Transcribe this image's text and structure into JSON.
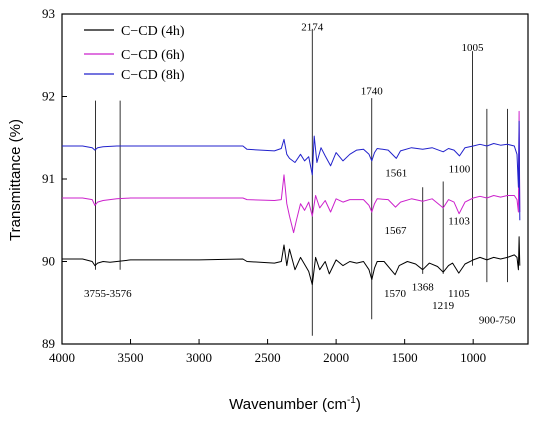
{
  "chart_data": {
    "type": "line",
    "xlabel_main": "Wavenumber (cm",
    "xlabel_sup": "-1",
    "xlabel_end": ")",
    "ylabel": "Transmittance (%)",
    "xlim": [
      4000,
      600
    ],
    "ylim": [
      89,
      93
    ],
    "x_reversed": true,
    "xticks": [
      4000,
      3500,
      3000,
      2500,
      2000,
      1500,
      1000
    ],
    "yticks": [
      89,
      90,
      91,
      92,
      93
    ],
    "legend_position": "top-left",
    "series": [
      {
        "name": "C−CD (4h)",
        "color": "#000000",
        "points": [
          [
            4000,
            90.03
          ],
          [
            3850,
            90.03
          ],
          [
            3780,
            90.0
          ],
          [
            3760,
            89.95
          ],
          [
            3740,
            89.98
          ],
          [
            3700,
            90.0
          ],
          [
            3650,
            89.99
          ],
          [
            3600,
            90.0
          ],
          [
            3500,
            90.02
          ],
          [
            3000,
            90.02
          ],
          [
            2680,
            90.03
          ],
          [
            2650,
            90.0
          ],
          [
            2450,
            89.98
          ],
          [
            2400,
            90.0
          ],
          [
            2380,
            90.2
          ],
          [
            2360,
            89.95
          ],
          [
            2340,
            90.15
          ],
          [
            2300,
            89.9
          ],
          [
            2260,
            90.05
          ],
          [
            2200,
            89.88
          ],
          [
            2174,
            89.72
          ],
          [
            2150,
            90.05
          ],
          [
            2120,
            89.9
          ],
          [
            2080,
            90.0
          ],
          [
            2050,
            89.85
          ],
          [
            2000,
            90.02
          ],
          [
            1950,
            89.95
          ],
          [
            1900,
            90.0
          ],
          [
            1850,
            89.98
          ],
          [
            1800,
            90.0
          ],
          [
            1760,
            89.9
          ],
          [
            1740,
            89.78
          ],
          [
            1720,
            89.92
          ],
          [
            1700,
            90.0
          ],
          [
            1650,
            90.0
          ],
          [
            1600,
            89.9
          ],
          [
            1570,
            89.84
          ],
          [
            1540,
            89.95
          ],
          [
            1480,
            90.0
          ],
          [
            1420,
            89.97
          ],
          [
            1368,
            89.9
          ],
          [
            1320,
            89.98
          ],
          [
            1260,
            89.94
          ],
          [
            1219,
            89.87
          ],
          [
            1180,
            89.95
          ],
          [
            1150,
            89.98
          ],
          [
            1105,
            89.86
          ],
          [
            1060,
            89.97
          ],
          [
            1000,
            90.02
          ],
          [
            950,
            90.05
          ],
          [
            900,
            90.02
          ],
          [
            850,
            90.05
          ],
          [
            800,
            90.03
          ],
          [
            750,
            90.05
          ],
          [
            700,
            90.08
          ],
          [
            680,
            90.05
          ],
          [
            670,
            89.9
          ],
          [
            665,
            90.3
          ],
          [
            660,
            89.95
          ]
        ]
      },
      {
        "name": "C−CD (6h)",
        "color": "#cc22cc",
        "points": [
          [
            4000,
            90.77
          ],
          [
            3850,
            90.77
          ],
          [
            3780,
            90.75
          ],
          [
            3760,
            90.68
          ],
          [
            3740,
            90.72
          ],
          [
            3700,
            90.74
          ],
          [
            3600,
            90.76
          ],
          [
            3500,
            90.77
          ],
          [
            3000,
            90.77
          ],
          [
            2680,
            90.77
          ],
          [
            2650,
            90.75
          ],
          [
            2450,
            90.74
          ],
          [
            2400,
            90.75
          ],
          [
            2380,
            91.05
          ],
          [
            2360,
            90.7
          ],
          [
            2340,
            90.55
          ],
          [
            2310,
            90.35
          ],
          [
            2290,
            90.5
          ],
          [
            2260,
            90.7
          ],
          [
            2230,
            90.62
          ],
          [
            2200,
            90.72
          ],
          [
            2174,
            90.55
          ],
          [
            2150,
            90.8
          ],
          [
            2120,
            90.65
          ],
          [
            2080,
            90.74
          ],
          [
            2040,
            90.6
          ],
          [
            2000,
            90.76
          ],
          [
            1950,
            90.72
          ],
          [
            1900,
            90.75
          ],
          [
            1800,
            90.75
          ],
          [
            1760,
            90.68
          ],
          [
            1740,
            90.6
          ],
          [
            1720,
            90.7
          ],
          [
            1700,
            90.76
          ],
          [
            1620,
            90.75
          ],
          [
            1567,
            90.66
          ],
          [
            1530,
            90.72
          ],
          [
            1450,
            90.76
          ],
          [
            1368,
            90.73
          ],
          [
            1300,
            90.76
          ],
          [
            1219,
            90.65
          ],
          [
            1180,
            90.75
          ],
          [
            1140,
            90.72
          ],
          [
            1103,
            90.58
          ],
          [
            1060,
            90.72
          ],
          [
            1000,
            90.77
          ],
          [
            950,
            90.79
          ],
          [
            900,
            90.77
          ],
          [
            850,
            90.8
          ],
          [
            800,
            90.78
          ],
          [
            750,
            90.8
          ],
          [
            700,
            90.8
          ],
          [
            680,
            90.75
          ],
          [
            670,
            90.6
          ],
          [
            665,
            91.82
          ],
          [
            660,
            90.6
          ]
        ]
      },
      {
        "name": "C−CD (8h)",
        "color": "#2222cc",
        "points": [
          [
            4000,
            91.4
          ],
          [
            3850,
            91.4
          ],
          [
            3780,
            91.38
          ],
          [
            3760,
            91.35
          ],
          [
            3740,
            91.38
          ],
          [
            3700,
            91.39
          ],
          [
            3600,
            91.4
          ],
          [
            3500,
            91.4
          ],
          [
            3000,
            91.4
          ],
          [
            2680,
            91.4
          ],
          [
            2650,
            91.36
          ],
          [
            2450,
            91.34
          ],
          [
            2400,
            91.37
          ],
          [
            2380,
            91.48
          ],
          [
            2360,
            91.3
          ],
          [
            2340,
            91.25
          ],
          [
            2300,
            91.2
          ],
          [
            2260,
            91.3
          ],
          [
            2230,
            91.22
          ],
          [
            2200,
            91.27
          ],
          [
            2174,
            91.05
          ],
          [
            2160,
            91.52
          ],
          [
            2140,
            91.2
          ],
          [
            2110,
            91.38
          ],
          [
            2080,
            91.28
          ],
          [
            2040,
            91.16
          ],
          [
            2000,
            91.32
          ],
          [
            1950,
            91.22
          ],
          [
            1900,
            91.3
          ],
          [
            1850,
            91.35
          ],
          [
            1800,
            91.36
          ],
          [
            1760,
            91.3
          ],
          [
            1740,
            91.22
          ],
          [
            1720,
            91.32
          ],
          [
            1700,
            91.37
          ],
          [
            1620,
            91.35
          ],
          [
            1561,
            91.25
          ],
          [
            1530,
            91.34
          ],
          [
            1450,
            91.38
          ],
          [
            1368,
            91.36
          ],
          [
            1300,
            91.38
          ],
          [
            1219,
            91.33
          ],
          [
            1180,
            91.37
          ],
          [
            1140,
            91.35
          ],
          [
            1100,
            91.28
          ],
          [
            1060,
            91.38
          ],
          [
            1000,
            91.4
          ],
          [
            950,
            91.42
          ],
          [
            900,
            91.4
          ],
          [
            850,
            91.43
          ],
          [
            800,
            91.41
          ],
          [
            750,
            91.42
          ],
          [
            700,
            91.4
          ],
          [
            680,
            91.3
          ],
          [
            670,
            90.9
          ],
          [
            665,
            91.7
          ],
          [
            660,
            90.5
          ]
        ]
      }
    ],
    "annotations": [
      {
        "text": "3755-3576",
        "x": 3755,
        "x2": 3576,
        "line_top": 91.95,
        "line_bottom": 89.9,
        "label_y": 89.62
      },
      {
        "text": "2174",
        "x": 2174,
        "line_top": 92.82,
        "line_bottom": 89.1,
        "label_y": 92.85
      },
      {
        "text": "1740",
        "x": 1740,
        "line_top": 91.98,
        "line_bottom": 89.3,
        "label_y": 92.07
      },
      {
        "text": "1570",
        "x": 1570,
        "label_y": 89.62
      },
      {
        "text": "1567",
        "x": 1567,
        "label_y": 90.38
      },
      {
        "text": "1561",
        "x": 1561,
        "label_y": 91.08
      },
      {
        "text": "1368",
        "x": 1368,
        "line_top": 90.9,
        "line_bottom": 89.85,
        "label_y": 89.7
      },
      {
        "text": "1219",
        "x": 1219,
        "line_top": 90.97,
        "line_bottom": 89.85,
        "label_y": 89.47
      },
      {
        "text": "1105",
        "x": 1105,
        "label_y": 89.62
      },
      {
        "text": "1103",
        "x": 1103,
        "label_y": 90.5
      },
      {
        "text": "1100",
        "x": 1100,
        "label_y": 91.13
      },
      {
        "text": "1005",
        "x": 1005,
        "line_top": 92.55,
        "line_bottom": 89.95,
        "label_y": 92.6
      },
      {
        "text": "900-750",
        "x": 900,
        "x2": 750,
        "line_top": 91.85,
        "line_bottom": 89.75,
        "label_y": 89.3
      }
    ]
  }
}
